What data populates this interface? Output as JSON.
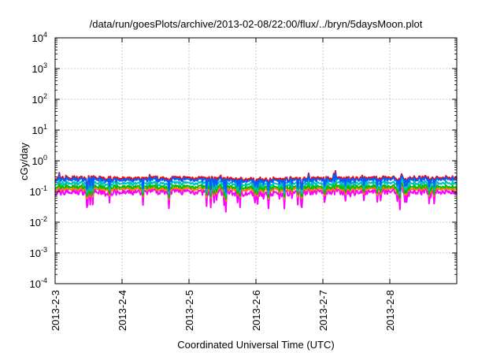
{
  "chart_data": {
    "type": "line",
    "title": "/data/run/goesPlots/archive/2013-02-08/22:00/flux/../bryn/5daysMoon.plot",
    "xlabel": "Coordinated Universal Time (UTC)",
    "ylabel": "cGy/day",
    "y_scale": "log",
    "ylim": [
      0.0001,
      10000
    ],
    "xlim": [
      "2013-02-03",
      "2013-02-09"
    ],
    "grid": true,
    "legend": "none",
    "x_ticks": [
      "2013-2-3",
      "2013-2-4",
      "2013-2-5",
      "2013-2-6",
      "2013-2-7",
      "2013-2-8"
    ],
    "y_ticks": [
      {
        "value": 0.0001,
        "base": "10",
        "exp": "-4"
      },
      {
        "value": 0.001,
        "base": "10",
        "exp": "-3"
      },
      {
        "value": 0.01,
        "base": "10",
        "exp": "-2"
      },
      {
        "value": 0.1,
        "base": "10",
        "exp": "-1"
      },
      {
        "value": 1,
        "base": "10",
        "exp": "0"
      },
      {
        "value": 10,
        "base": "10",
        "exp": "1"
      },
      {
        "value": 100,
        "base": "10",
        "exp": "2"
      },
      {
        "value": 1000,
        "base": "10",
        "exp": "3"
      },
      {
        "value": 10000,
        "base": "10",
        "exp": "4"
      }
    ],
    "x": [
      "2013-02-03",
      "2013-02-03T12:00",
      "2013-02-04",
      "2013-02-04T12:00",
      "2013-02-05",
      "2013-02-05T12:00",
      "2013-02-06",
      "2013-02-06T12:00",
      "2013-02-07",
      "2013-02-07T12:00",
      "2013-02-08",
      "2013-02-08T12:00",
      "2013-02-09"
    ],
    "series": [
      {
        "color": "#ff00ff",
        "values": [
          0.09,
          0.1,
          0.09,
          0.1,
          0.1,
          0.09,
          0.085,
          0.09,
          0.1,
          0.09,
          0.1,
          0.1,
          0.1
        ]
      },
      {
        "color": "#ff8000",
        "values": [
          0.12,
          0.125,
          0.12,
          0.12,
          0.125,
          0.12,
          0.115,
          0.12,
          0.12,
          0.12,
          0.125,
          0.125,
          0.125
        ]
      },
      {
        "color": "#00c000",
        "values": [
          0.14,
          0.145,
          0.14,
          0.14,
          0.145,
          0.14,
          0.135,
          0.14,
          0.14,
          0.14,
          0.145,
          0.145,
          0.145
        ]
      },
      {
        "color": "#00c0c0",
        "values": [
          0.18,
          0.19,
          0.18,
          0.18,
          0.19,
          0.18,
          0.17,
          0.18,
          0.18,
          0.18,
          0.19,
          0.19,
          0.19
        ]
      },
      {
        "color": "#ff0000",
        "values": [
          0.27,
          0.28,
          0.26,
          0.27,
          0.28,
          0.26,
          0.25,
          0.26,
          0.27,
          0.26,
          0.28,
          0.28,
          0.29
        ]
      },
      {
        "color": "#0060ff",
        "values": [
          0.24,
          0.25,
          0.23,
          0.24,
          0.25,
          0.23,
          0.22,
          0.23,
          0.24,
          0.23,
          0.25,
          0.25,
          0.26
        ]
      }
    ]
  }
}
